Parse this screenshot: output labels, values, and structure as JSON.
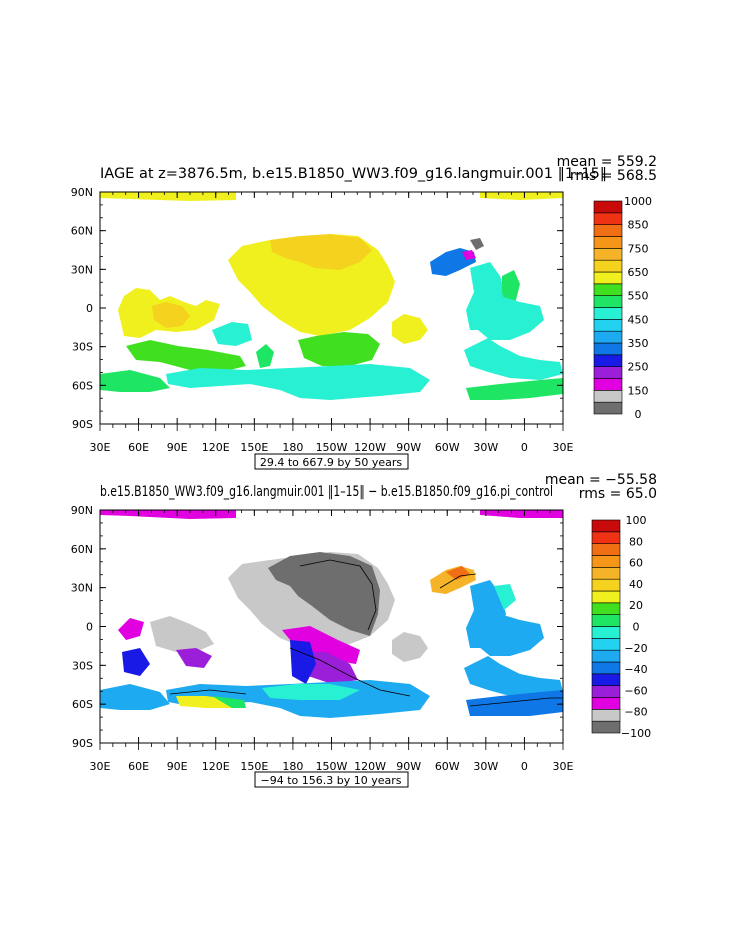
{
  "panels": [
    {
      "title": "IAGE at z=3876.5m, b.e15.B1850_WW3.f09_g16.langmuir.001 ‖1–15‖",
      "stats": {
        "mean": "mean = 559.2",
        "rms": "rms = 568.5"
      },
      "ylabels": [
        "90N",
        "60N",
        "30N",
        "0",
        "30S",
        "60S",
        "90S"
      ],
      "xlabels": [
        "30E",
        "60E",
        "90E",
        "120E",
        "150E",
        "180",
        "150W",
        "120W",
        "90W",
        "60W",
        "30W",
        "0",
        "30E"
      ],
      "legend_labels": [
        "1000",
        "850",
        "750",
        "650",
        "550",
        "450",
        "350",
        "250",
        "150",
        "0"
      ],
      "legend_colors": [
        "#6e6e6e",
        "#c8c8c8",
        "#e000e0",
        "#9b1fd8",
        "#1a1ae6",
        "#0f78e6",
        "#1eaaf0",
        "#22d2f0",
        "#28f0d2",
        "#1ee664",
        "#40e020",
        "#f0f01e",
        "#f5d21e",
        "#f5b428",
        "#f59619",
        "#f06e14",
        "#f03214",
        "#c80a0a"
      ],
      "contour_info": "29.4 to 667.9 by 50 years"
    },
    {
      "title": "b.e15.B1850_WW3.f09_g16.langmuir.001 ‖1–15‖ − b.e15.B1850.f09_g16.pi_control",
      "stats": {
        "mean": "mean = −55.58",
        "rms": "rms = 65.0"
      },
      "ylabels": [
        "90N",
        "60N",
        "30N",
        "0",
        "30S",
        "60S",
        "90S"
      ],
      "xlabels": [
        "30E",
        "60E",
        "90E",
        "120E",
        "150E",
        "180",
        "150W",
        "120W",
        "90W",
        "60W",
        "30W",
        "0",
        "30E"
      ],
      "legend_labels": [
        "100",
        "80",
        "60",
        "40",
        "20",
        "0",
        "−20",
        "−40",
        "−60",
        "−80",
        "−100"
      ],
      "legend_colors": [
        "#6e6e6e",
        "#c8c8c8",
        "#e000e0",
        "#9b1fd8",
        "#1a1ae6",
        "#0f78e6",
        "#1eaaf0",
        "#22d2f0",
        "#28f0d2",
        "#1ee664",
        "#40e020",
        "#f0f01e",
        "#f5d21e",
        "#f5b428",
        "#f59619",
        "#f06e14",
        "#f03214",
        "#c80a0a"
      ],
      "contour_info": "−94 to 156.3 by 10 years"
    }
  ]
}
